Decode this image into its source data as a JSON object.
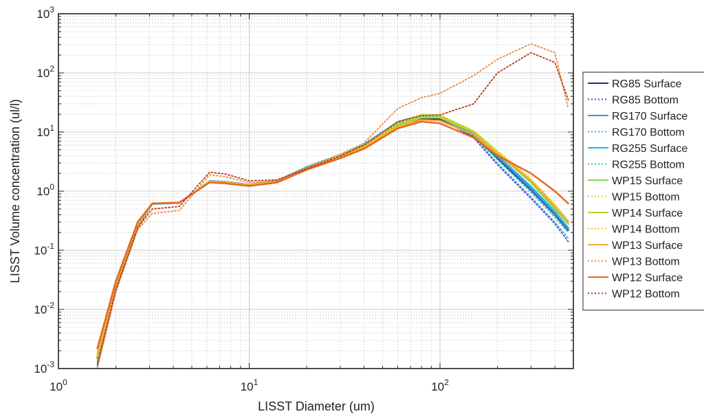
{
  "chart_data": {
    "type": "line",
    "title": "",
    "xlabel": "LISST Diameter (um)",
    "ylabel": "LISST Volume concentration (ul/l)",
    "xscale": "log",
    "yscale": "log",
    "xlim": [
      1,
      500
    ],
    "ylim": [
      0.001,
      1000
    ],
    "grid": true,
    "legend_position": "right-outside",
    "x_ticks": [
      {
        "base": "10",
        "exp": "0",
        "value": 1
      },
      {
        "base": "10",
        "exp": "1",
        "value": 10
      },
      {
        "base": "10",
        "exp": "2",
        "value": 100
      }
    ],
    "y_ticks": [
      {
        "base": "10",
        "exp": "-3",
        "value": 0.001
      },
      {
        "base": "10",
        "exp": "-2",
        "value": 0.01
      },
      {
        "base": "10",
        "exp": "-1",
        "value": 0.1
      },
      {
        "base": "10",
        "exp": "0",
        "value": 1
      },
      {
        "base": "10",
        "exp": "1",
        "value": 10
      },
      {
        "base": "10",
        "exp": "2",
        "value": 100
      },
      {
        "base": "10",
        "exp": "3",
        "value": 1000
      }
    ],
    "x": [
      1.6,
      2.0,
      2.6,
      3.1,
      4.3,
      6.2,
      7.5,
      10,
      14,
      20,
      30,
      40,
      60,
      80,
      100,
      150,
      200,
      300,
      400,
      470
    ],
    "series": [
      {
        "name": "RG85 Surface",
        "color": "#2b2a8c",
        "dash": "solid",
        "values": [
          0.0015,
          0.025,
          0.27,
          0.62,
          0.64,
          1.45,
          1.4,
          1.28,
          1.45,
          2.4,
          3.8,
          5.6,
          12.5,
          17,
          16.5,
          8.5,
          3.6,
          1.05,
          0.4,
          0.22
        ]
      },
      {
        "name": "RG85 Bottom",
        "color": "#3a52d6",
        "dash": "dotted",
        "values": [
          0.0011,
          0.02,
          0.24,
          0.6,
          0.63,
          1.5,
          1.45,
          1.3,
          1.5,
          2.5,
          4.0,
          6.0,
          14,
          18,
          17,
          8.0,
          2.8,
          0.75,
          0.28,
          0.14
        ]
      },
      {
        "name": "RG170 Surface",
        "color": "#4a86e8",
        "dash": "solid",
        "values": [
          0.0016,
          0.026,
          0.28,
          0.62,
          0.64,
          1.45,
          1.4,
          1.27,
          1.45,
          2.45,
          3.9,
          5.8,
          13,
          18,
          17.5,
          9.0,
          3.8,
          1.1,
          0.42,
          0.23
        ]
      },
      {
        "name": "RG170 Bottom",
        "color": "#4aa3df",
        "dash": "dotted",
        "values": [
          0.0012,
          0.021,
          0.25,
          0.6,
          0.63,
          1.5,
          1.45,
          1.3,
          1.52,
          2.6,
          4.2,
          6.3,
          15,
          19.5,
          18,
          8.5,
          3.0,
          0.8,
          0.3,
          0.16
        ]
      },
      {
        "name": "RG255 Surface",
        "color": "#22b7d4",
        "dash": "solid",
        "values": [
          0.0016,
          0.026,
          0.28,
          0.62,
          0.64,
          1.45,
          1.4,
          1.27,
          1.45,
          2.45,
          3.9,
          5.8,
          13.5,
          18.5,
          18,
          9.5,
          4.0,
          1.2,
          0.45,
          0.24
        ]
      },
      {
        "name": "RG255 Bottom",
        "color": "#1fc8a8",
        "dash": "dotted",
        "values": [
          0.0013,
          0.022,
          0.26,
          0.61,
          0.63,
          1.48,
          1.42,
          1.28,
          1.5,
          2.55,
          4.1,
          6.1,
          14.5,
          19,
          18,
          9.0,
          3.4,
          0.95,
          0.36,
          0.2
        ]
      },
      {
        "name": "WP15 Surface",
        "color": "#7ed957",
        "dash": "solid",
        "values": [
          0.0016,
          0.026,
          0.28,
          0.62,
          0.64,
          1.45,
          1.4,
          1.27,
          1.45,
          2.4,
          3.8,
          5.6,
          13,
          18.5,
          18.5,
          10,
          4.4,
          1.4,
          0.5,
          0.28
        ]
      },
      {
        "name": "WP15 Bottom",
        "color": "#b5e03a",
        "dash": "dotted",
        "values": [
          0.0014,
          0.023,
          0.26,
          0.61,
          0.63,
          1.47,
          1.42,
          1.28,
          1.48,
          2.5,
          4.0,
          5.9,
          14,
          20,
          19.5,
          10.5,
          4.6,
          1.5,
          0.55,
          0.3
        ]
      },
      {
        "name": "WP14 Surface",
        "color": "#b8d42a",
        "dash": "solid",
        "values": [
          0.0016,
          0.026,
          0.28,
          0.62,
          0.64,
          1.45,
          1.4,
          1.27,
          1.45,
          2.4,
          3.8,
          5.5,
          12.5,
          17.5,
          17.5,
          10,
          4.5,
          1.5,
          0.55,
          0.3
        ]
      },
      {
        "name": "WP14 Bottom",
        "color": "#f5c518",
        "dash": "dotted",
        "values": [
          0.0014,
          0.023,
          0.26,
          0.61,
          0.63,
          1.47,
          1.42,
          1.28,
          1.48,
          2.45,
          3.9,
          5.7,
          13.5,
          19,
          19,
          10.5,
          4.8,
          1.6,
          0.6,
          0.32
        ]
      },
      {
        "name": "WP13 Surface",
        "color": "#f7a737",
        "dash": "solid",
        "values": [
          0.0018,
          0.027,
          0.29,
          0.62,
          0.64,
          1.42,
          1.38,
          1.25,
          1.42,
          2.35,
          3.7,
          5.4,
          12,
          16,
          15.5,
          9.0,
          4.2,
          1.5,
          0.55,
          0.3
        ]
      },
      {
        "name": "WP13 Bottom",
        "color": "#f08a3a",
        "dash": "dotted",
        "values": [
          0.001,
          0.02,
          0.22,
          0.42,
          0.47,
          1.9,
          1.75,
          1.4,
          1.5,
          2.5,
          4.2,
          6.5,
          25,
          38,
          45,
          90,
          170,
          310,
          220,
          25
        ]
      },
      {
        "name": "WP12 Surface",
        "color": "#e8641e",
        "dash": "solid",
        "values": [
          0.0022,
          0.03,
          0.3,
          0.62,
          0.64,
          1.4,
          1.35,
          1.22,
          1.4,
          2.3,
          3.6,
          5.2,
          11.5,
          15,
          14,
          8.0,
          4.0,
          2.0,
          1.0,
          0.62
        ]
      },
      {
        "name": "WP12 Bottom",
        "color": "#b5371c",
        "dash": "dotted",
        "values": [
          0.0012,
          0.022,
          0.24,
          0.5,
          0.55,
          2.1,
          1.95,
          1.5,
          1.55,
          2.4,
          3.9,
          6.0,
          15,
          19,
          19.5,
          30,
          100,
          220,
          150,
          35
        ]
      }
    ]
  }
}
